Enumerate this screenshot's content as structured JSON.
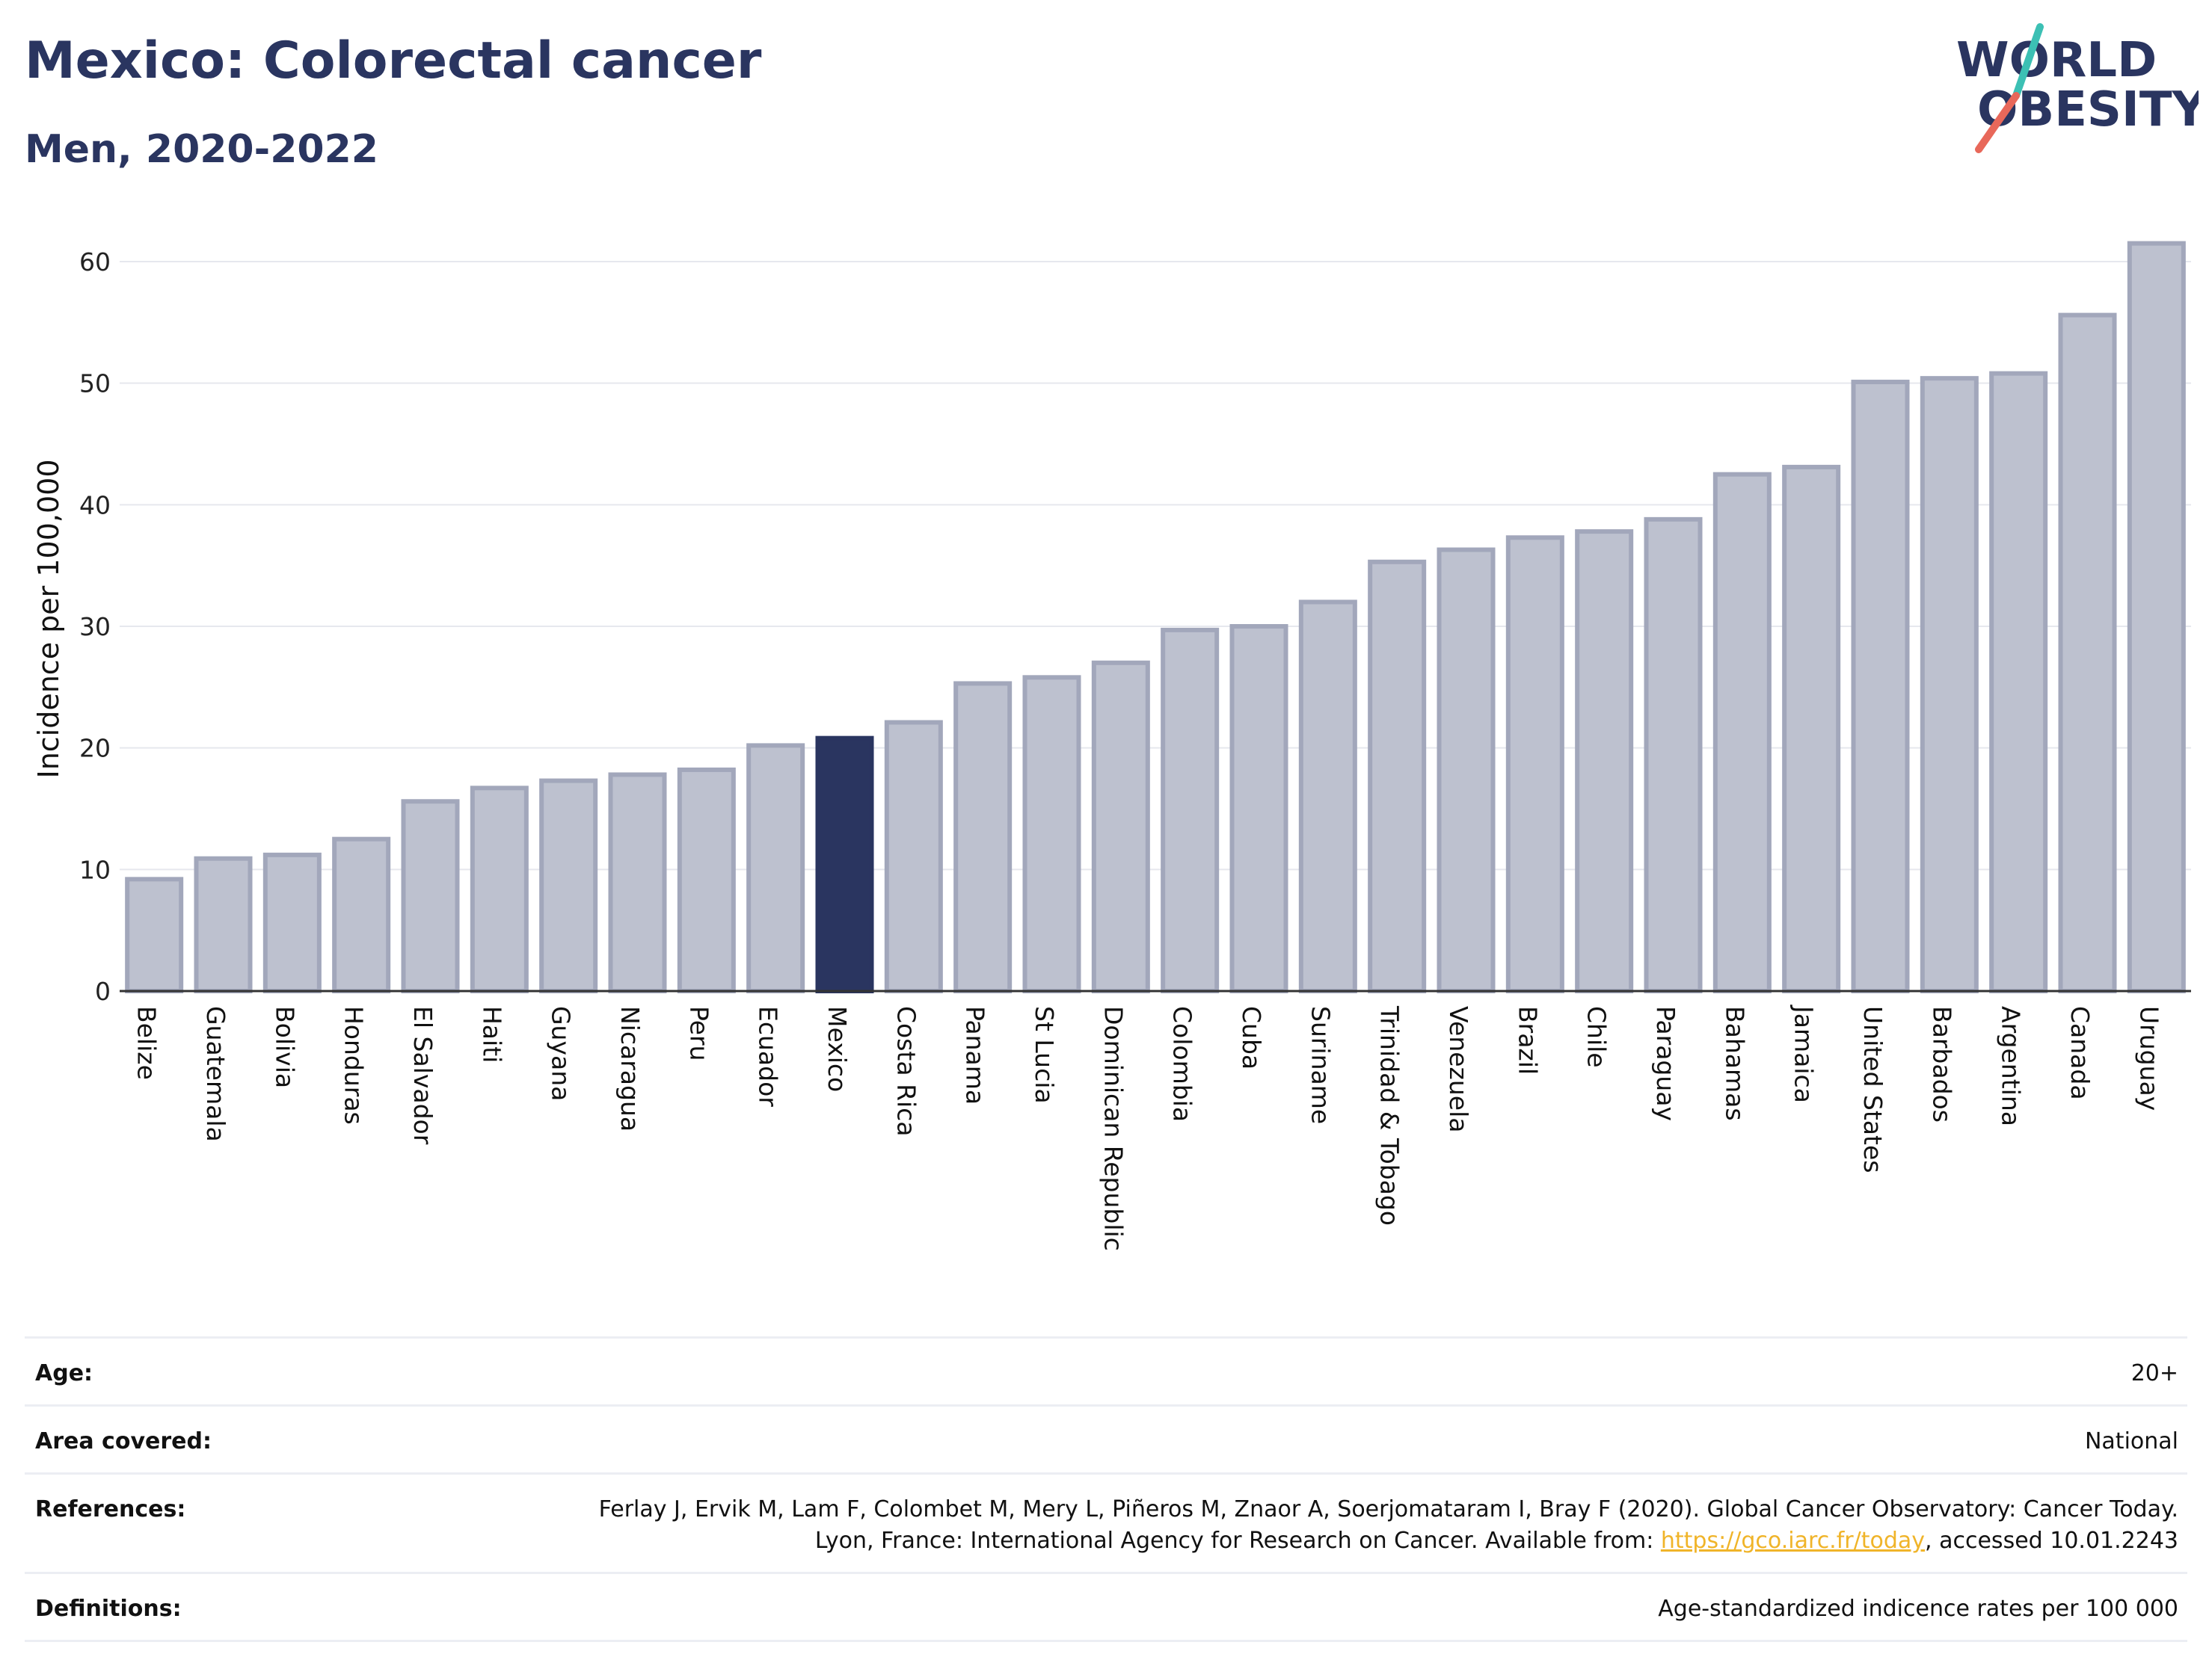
{
  "header": {
    "title": "Mexico: Colorectal cancer",
    "subtitle": "Men, 2020-2022"
  },
  "logo": {
    "line1": "WORLD",
    "line2": "OBESITY",
    "colors": {
      "text": "#2a3560",
      "slash_top": "#3cc0b4",
      "slash_bottom": "#e8685a"
    }
  },
  "chart_data": {
    "type": "bar",
    "ylabel": "Incidence per 100,000",
    "xlabel": "",
    "ylim": [
      0,
      65
    ],
    "yticks": [
      0,
      10,
      20,
      30,
      40,
      50,
      60
    ],
    "grid": true,
    "highlight": "Mexico",
    "colors": {
      "bar": "#bdc1cf",
      "bar_border": "#a2a7bb",
      "highlight": "#2a3560"
    },
    "categories": [
      "Belize",
      "Guatemala",
      "Bolivia",
      "Honduras",
      "El Salvador",
      "Haiti",
      "Guyana",
      "Nicaragua",
      "Peru",
      "Ecuador",
      "Mexico",
      "Costa Rica",
      "Panama",
      "St Lucia",
      "Dominican Republic",
      "Colombia",
      "Cuba",
      "Suriname",
      "Trinidad & Tobago",
      "Venezuela",
      "Brazil",
      "Chile",
      "Paraguay",
      "Bahamas",
      "Jamaica",
      "United States",
      "Barbados",
      "Argentina",
      "Canada",
      "Uruguay"
    ],
    "values": [
      9.2,
      10.9,
      11.2,
      12.5,
      15.6,
      16.7,
      17.3,
      17.8,
      18.2,
      20.2,
      20.8,
      22.1,
      25.3,
      25.8,
      27.0,
      29.7,
      30.0,
      32.0,
      35.3,
      36.3,
      37.3,
      37.8,
      38.8,
      42.5,
      43.1,
      50.1,
      50.4,
      50.8,
      55.6,
      61.5
    ]
  },
  "meta": {
    "age": {
      "label": "Age:",
      "value": "20+"
    },
    "area": {
      "label": "Area covered:",
      "value": "National"
    },
    "references": {
      "label": "References:",
      "text_before": "Ferlay J, Ervik M, Lam F, Colombet M, Mery L, Piñeros M, Znaor A, Soerjomataram I, Bray F (2020). Global Cancer Observatory: Cancer Today. Lyon, France: International Agency for Research on Cancer. Available from: ",
      "link": "https://gco.iarc.fr/today",
      "text_after": ", accessed 10.01.2243"
    },
    "definitions": {
      "label": "Definitions:",
      "value": "Age-standardized indicence rates per 100 000"
    }
  }
}
